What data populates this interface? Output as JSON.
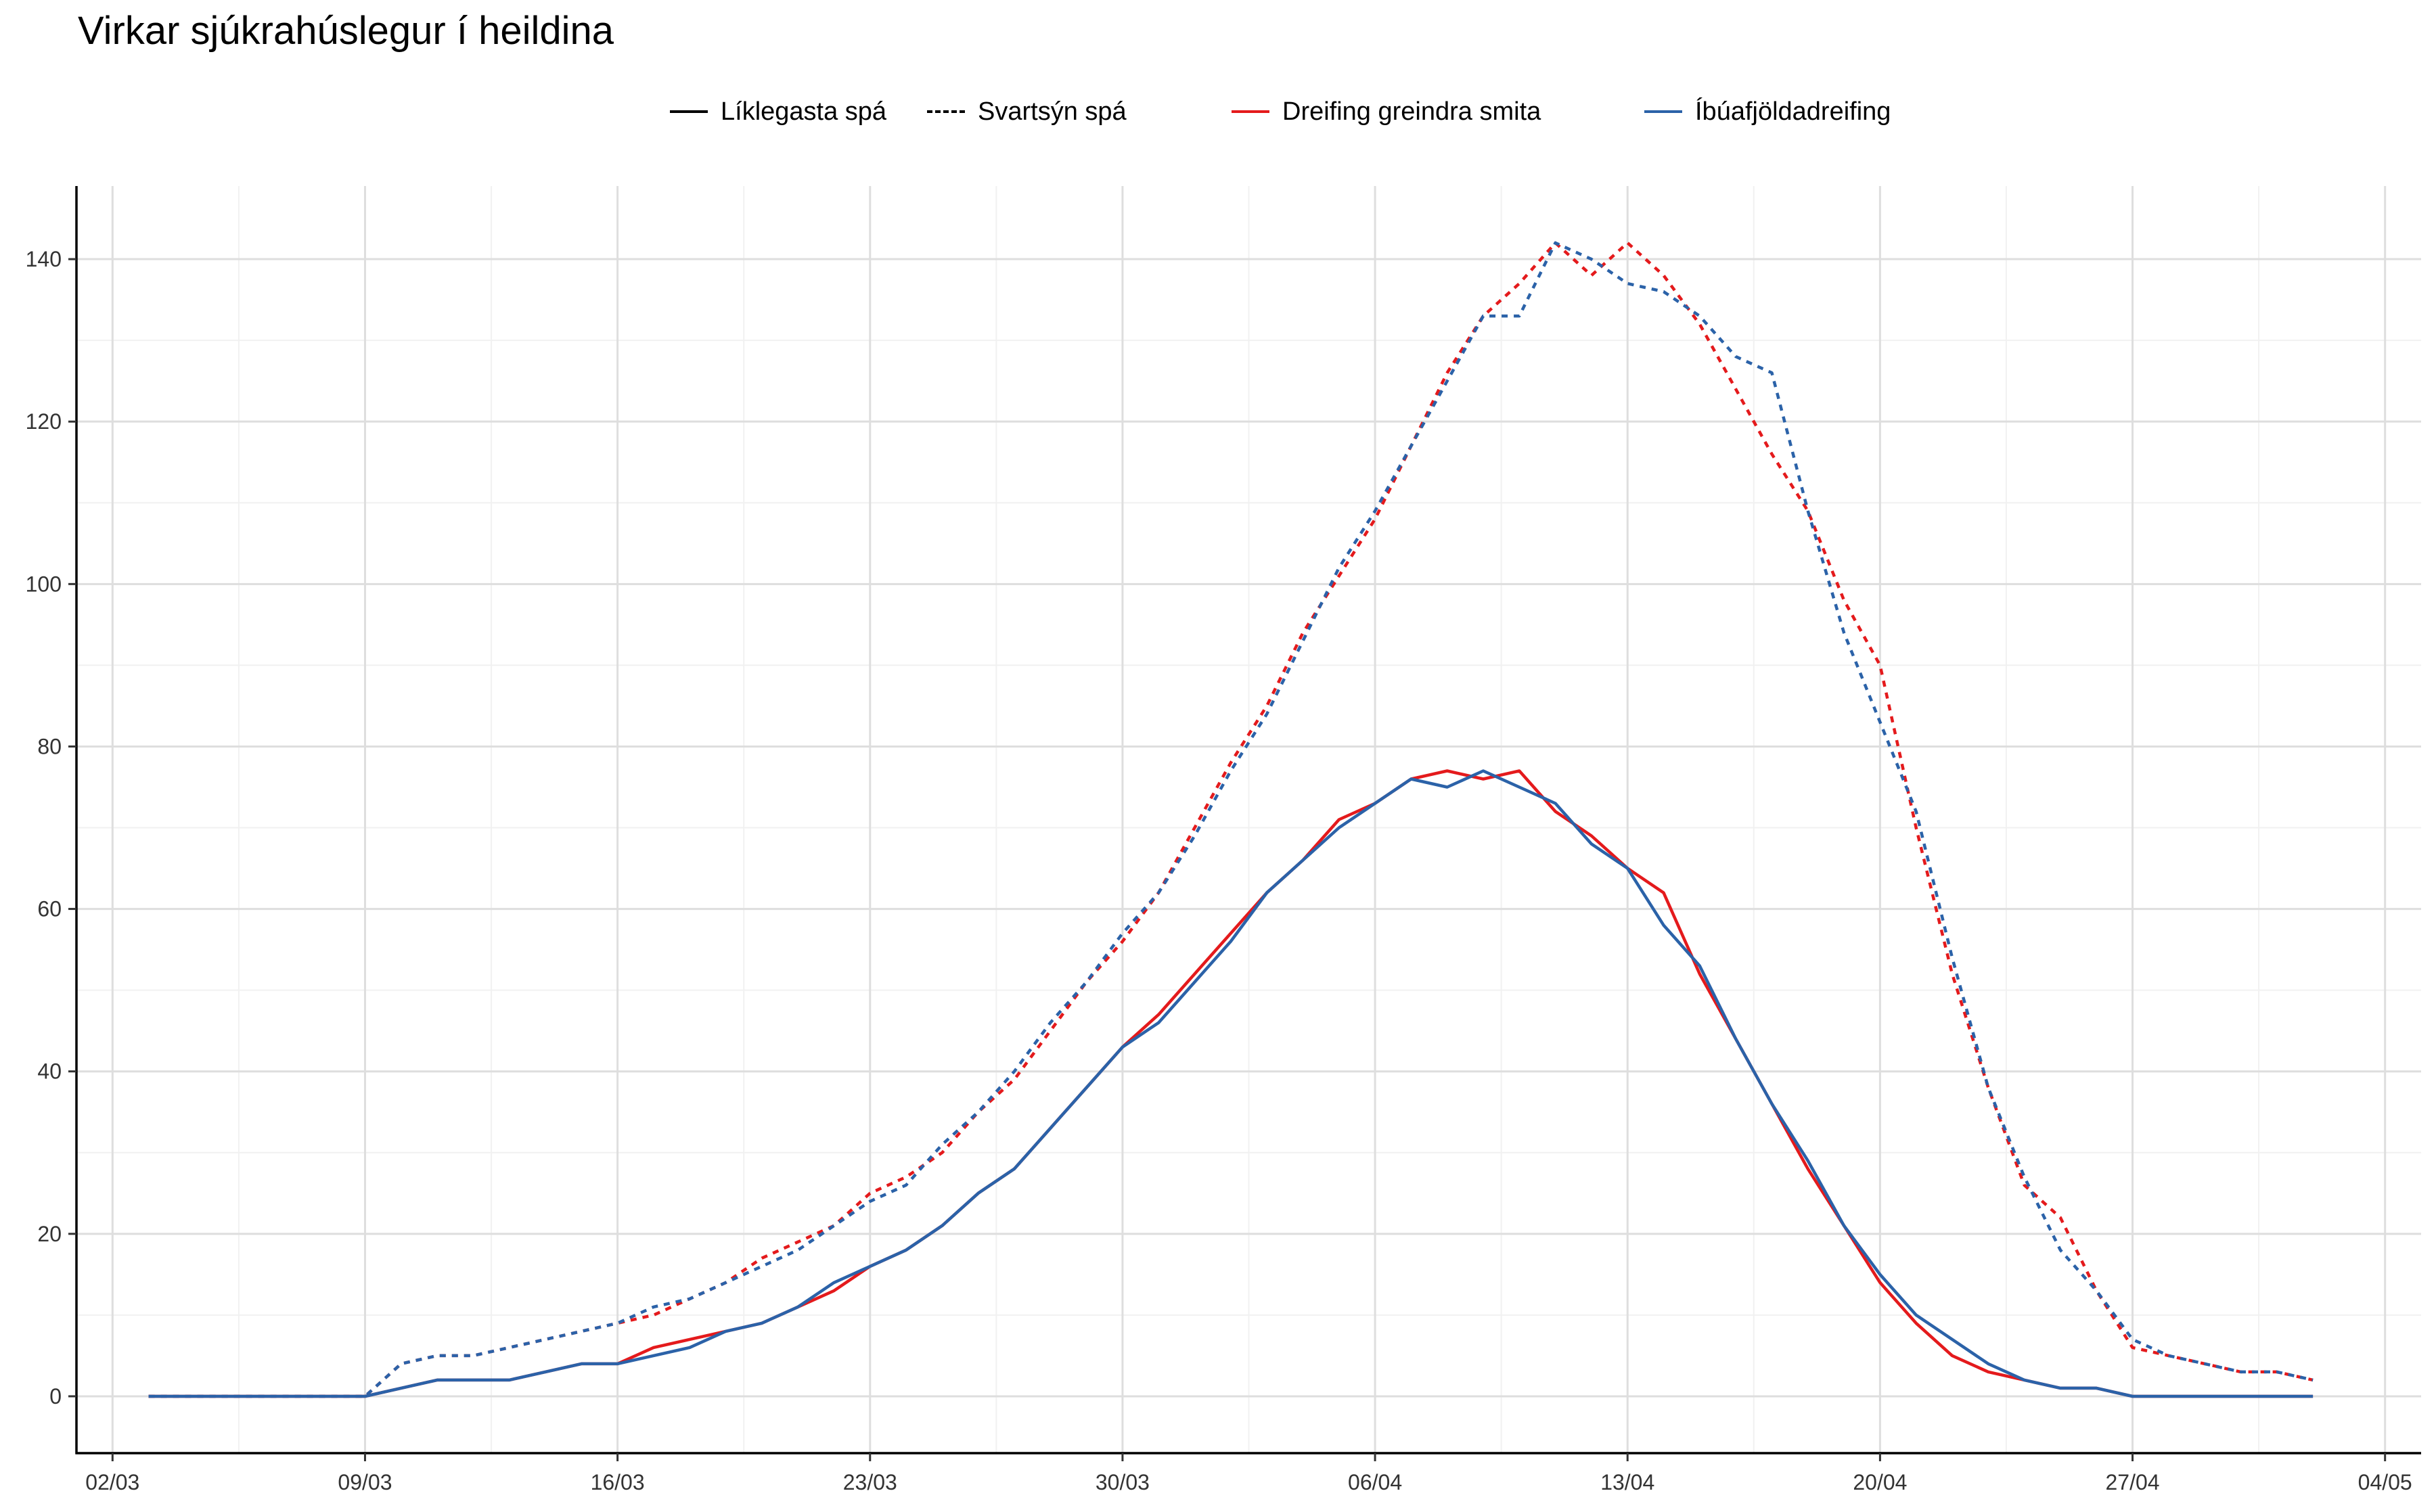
{
  "chart_data": {
    "type": "line",
    "title": "Virkar sjúkrahúslegur í heildina",
    "xlabel": "",
    "ylabel": "",
    "x_axis": {
      "type": "date",
      "tick_labels": [
        "02/03",
        "09/03",
        "16/03",
        "23/03",
        "30/03",
        "06/04",
        "13/04",
        "20/04",
        "27/04",
        "04/05"
      ],
      "range": [
        "2020-03-01",
        "2020-05-05"
      ]
    },
    "y_axis": {
      "range": [
        -7,
        149
      ],
      "ticks": [
        0,
        20,
        40,
        60,
        80,
        100,
        120,
        140
      ]
    },
    "grid": true,
    "legend_placement": "top",
    "legend": {
      "linetype": [
        {
          "label": "Líklegasta spá",
          "style": "solid"
        },
        {
          "label": "Svartsýn spá",
          "style": "dashed"
        }
      ],
      "color": [
        {
          "label": "Dreifing greindra smita",
          "color": "#E41A1C"
        },
        {
          "label": "Íbúafjöldadreifing",
          "color": "#2B62A8"
        }
      ]
    },
    "dates": [
      "2020-03-03",
      "2020-03-04",
      "2020-03-05",
      "2020-03-06",
      "2020-03-07",
      "2020-03-08",
      "2020-03-09",
      "2020-03-10",
      "2020-03-11",
      "2020-03-12",
      "2020-03-13",
      "2020-03-14",
      "2020-03-15",
      "2020-03-16",
      "2020-03-17",
      "2020-03-18",
      "2020-03-19",
      "2020-03-20",
      "2020-03-21",
      "2020-03-22",
      "2020-03-23",
      "2020-03-24",
      "2020-03-25",
      "2020-03-26",
      "2020-03-27",
      "2020-03-28",
      "2020-03-29",
      "2020-03-30",
      "2020-03-31",
      "2020-04-01",
      "2020-04-02",
      "2020-04-03",
      "2020-04-04",
      "2020-04-05",
      "2020-04-06",
      "2020-04-07",
      "2020-04-08",
      "2020-04-09",
      "2020-04-10",
      "2020-04-11",
      "2020-04-12",
      "2020-04-13",
      "2020-04-14",
      "2020-04-15",
      "2020-04-16",
      "2020-04-17",
      "2020-04-18",
      "2020-04-19",
      "2020-04-20",
      "2020-04-21",
      "2020-04-22",
      "2020-04-23",
      "2020-04-24",
      "2020-04-25",
      "2020-04-26",
      "2020-04-27",
      "2020-04-28",
      "2020-04-29",
      "2020-04-30",
      "2020-05-01",
      "2020-05-02"
    ],
    "series": [
      {
        "name": "Dreifing greindra smita",
        "forecast": "Svartsýn spá",
        "color": "#E41A1C",
        "dashed": true,
        "values": [
          0,
          0,
          0,
          0,
          0,
          0,
          0,
          4,
          5,
          5,
          6,
          7,
          8,
          9,
          10,
          12,
          14,
          17,
          19,
          21,
          25,
          27,
          30,
          35,
          39,
          45,
          51,
          56,
          62,
          70,
          78,
          85,
          94,
          101,
          108,
          117,
          126,
          133,
          137,
          142,
          138,
          142,
          138,
          132,
          124,
          116,
          109,
          98,
          90,
          70,
          52,
          38,
          26,
          22,
          13,
          6,
          5,
          4,
          3,
          3,
          2
        ]
      },
      {
        "name": "Íbúafjöldadreifing",
        "forecast": "Svartsýn spá",
        "color": "#2B62A8",
        "dashed": true,
        "values": [
          0,
          0,
          0,
          0,
          0,
          0,
          0,
          4,
          5,
          5,
          6,
          7,
          8,
          9,
          11,
          12,
          14,
          16,
          18,
          21,
          24,
          26,
          31,
          35,
          40,
          46,
          51,
          57,
          62,
          69,
          77,
          84,
          93,
          102,
          109,
          117,
          125,
          133,
          133,
          142,
          140,
          137,
          136,
          133,
          128,
          126,
          109,
          94,
          83,
          72,
          54,
          38,
          27,
          18,
          13,
          7,
          5,
          4,
          3,
          3,
          2
        ]
      },
      {
        "name": "Dreifing greindra smita",
        "forecast": "Líklegasta spá",
        "color": "#E41A1C",
        "dashed": false,
        "values": [
          0,
          0,
          0,
          0,
          0,
          0,
          0,
          1,
          2,
          2,
          2,
          3,
          4,
          4,
          6,
          7,
          8,
          9,
          11,
          13,
          16,
          18,
          21,
          25,
          28,
          33,
          38,
          43,
          47,
          52,
          57,
          62,
          66,
          71,
          73,
          76,
          77,
          76,
          77,
          72,
          69,
          65,
          62,
          52,
          44,
          36,
          28,
          21,
          14,
          9,
          5,
          3,
          2,
          1,
          1,
          0,
          0,
          0,
          0,
          0,
          0
        ]
      },
      {
        "name": "Íbúafjöldadreifing",
        "forecast": "Líklegasta spá",
        "color": "#2B62A8",
        "dashed": false,
        "values": [
          0,
          0,
          0,
          0,
          0,
          0,
          0,
          1,
          2,
          2,
          2,
          3,
          4,
          4,
          5,
          6,
          8,
          9,
          11,
          14,
          16,
          18,
          21,
          25,
          28,
          33,
          38,
          43,
          46,
          51,
          56,
          62,
          66,
          70,
          73,
          76,
          75,
          77,
          75,
          73,
          68,
          65,
          58,
          53,
          44,
          36,
          29,
          21,
          15,
          10,
          7,
          4,
          2,
          1,
          1,
          0,
          0,
          0,
          0,
          0,
          0
        ]
      }
    ]
  }
}
